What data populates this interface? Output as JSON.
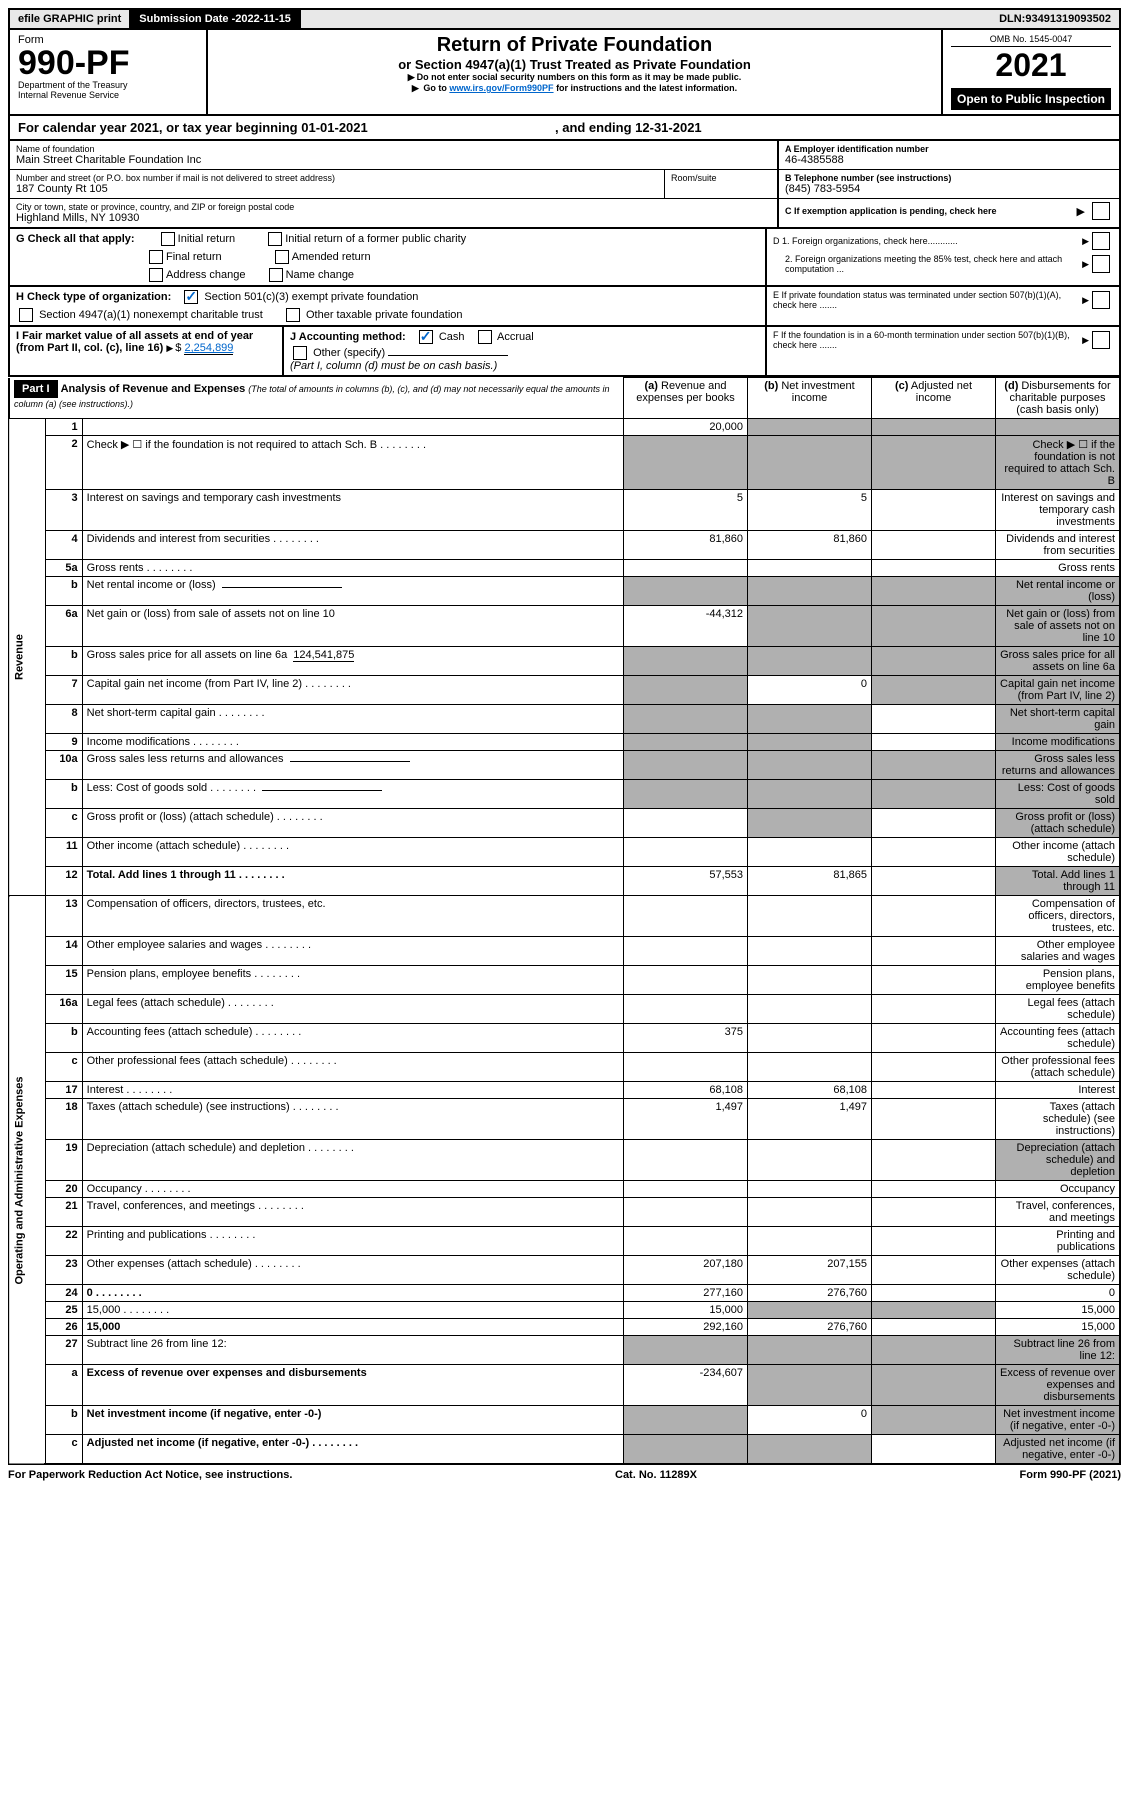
{
  "topbar": {
    "efile": "efile GRAPHIC print",
    "submission_label": "Submission Date - ",
    "submission_date": "2022-11-15",
    "dln_label": "DLN: ",
    "dln": "93491319093502"
  },
  "header": {
    "form_label": "Form",
    "form_no": "990-PF",
    "dept": "Department of the Treasury",
    "irs": "Internal Revenue Service",
    "title": "Return of Private Foundation",
    "subtitle": "or Section 4947(a)(1) Trust Treated as Private Foundation",
    "warn1": "Do not enter social security numbers on this form as it may be made public.",
    "warn2_a": "Go to ",
    "warn2_link": "www.irs.gov/Form990PF",
    "warn2_b": " for instructions and the latest information.",
    "omb": "OMB No. 1545-0047",
    "year": "2021",
    "open": "Open to Public Inspection"
  },
  "calendar": {
    "text_a": "For calendar year 2021, or tax year beginning ",
    "begin": "01-01-2021",
    "text_b": ", and ending ",
    "end": "12-31-2021"
  },
  "entity": {
    "name_label": "Name of foundation",
    "name": "Main Street Charitable Foundation Inc",
    "addr_label": "Number and street (or P.O. box number if mail is not delivered to street address)",
    "addr": "187 County Rt 105",
    "room_label": "Room/suite",
    "city_label": "City or town, state or province, country, and ZIP or foreign postal code",
    "city": "Highland Mills, NY  10930",
    "a_label": "A Employer identification number",
    "a_val": "46-4385588",
    "b_label": "B Telephone number (see instructions)",
    "b_val": "(845) 783-5954",
    "c_label": "C If exemption application is pending, check here",
    "d1": "D 1. Foreign organizations, check here............",
    "d2": "2. Foreign organizations meeting the 85% test, check here and attach computation ...",
    "e": "E  If private foundation status was terminated under section 507(b)(1)(A), check here .......",
    "f": "F  If the foundation is in a 60-month termination under section 507(b)(1)(B), check here .......",
    "g_label": "G Check all that apply:",
    "g_opts": [
      "Initial return",
      "Initial return of a former public charity",
      "Final return",
      "Amended return",
      "Address change",
      "Name change"
    ],
    "h_label": "H Check type of organization:",
    "h_opt1": "Section 501(c)(3) exempt private foundation",
    "h_opt2": "Section 4947(a)(1) nonexempt charitable trust",
    "h_opt3": "Other taxable private foundation",
    "i_label": "I Fair market value of all assets at end of year (from Part II, col. (c), line 16)",
    "i_val": "2,254,899",
    "j_label": "J Accounting method:",
    "j_cash": "Cash",
    "j_accrual": "Accrual",
    "j_other": "Other (specify)",
    "j_note": "(Part I, column (d) must be on cash basis.)"
  },
  "part1": {
    "label": "Part I",
    "title": "Analysis of Revenue and Expenses",
    "note": "(The total of amounts in columns (b), (c), and (d) may not necessarily equal the amounts in column (a) (see instructions).)",
    "col_a": "Revenue and expenses per books",
    "col_b": "Net investment income",
    "col_c": "Adjusted net income",
    "col_d": "Disbursements for charitable purposes (cash basis only)",
    "sections": {
      "rev": "Revenue",
      "exp": "Operating and Administrative Expenses"
    },
    "rows": [
      {
        "n": "1",
        "d": "",
        "a": "20,000",
        "b": "",
        "c": "",
        "shade_b": true,
        "shade_c": true,
        "shade_d": true
      },
      {
        "n": "2",
        "d": "Check ▶ ☐ if the foundation is not required to attach Sch. B",
        "dots": true,
        "a": "",
        "shade_a": true,
        "shade_b": true,
        "shade_c": true,
        "shade_d": true
      },
      {
        "n": "3",
        "d": "Interest on savings and temporary cash investments",
        "a": "5",
        "b": "5"
      },
      {
        "n": "4",
        "d": "Dividends and interest from securities",
        "dots": true,
        "a": "81,860",
        "b": "81,860"
      },
      {
        "n": "5a",
        "d": "Gross rents",
        "dots": true
      },
      {
        "n": "b",
        "d": "Net rental income or (loss)",
        "underline": true,
        "shade_a": true,
        "shade_b": true,
        "shade_c": true,
        "shade_d": true
      },
      {
        "n": "6a",
        "d": "Net gain or (loss) from sale of assets not on line 10",
        "a": "-44,312",
        "shade_b": true,
        "shade_c": true,
        "shade_d": true
      },
      {
        "n": "b",
        "d": "Gross sales price for all assets on line 6a",
        "inline_val": "124,541,875",
        "shade_a": true,
        "shade_b": true,
        "shade_c": true,
        "shade_d": true
      },
      {
        "n": "7",
        "d": "Capital gain net income (from Part IV, line 2)",
        "dots": true,
        "shade_a": true,
        "b": "0",
        "shade_c": true,
        "shade_d": true
      },
      {
        "n": "8",
        "d": "Net short-term capital gain",
        "dots": true,
        "shade_a": true,
        "shade_b": true,
        "shade_d": true
      },
      {
        "n": "9",
        "d": "Income modifications",
        "dots": true,
        "shade_a": true,
        "shade_b": true,
        "shade_d": true
      },
      {
        "n": "10a",
        "d": "Gross sales less returns and allowances",
        "underline": true,
        "shade_a": true,
        "shade_b": true,
        "shade_c": true,
        "shade_d": true
      },
      {
        "n": "b",
        "d": "Less: Cost of goods sold",
        "dots": true,
        "underline": true,
        "shade_a": true,
        "shade_b": true,
        "shade_c": true,
        "shade_d": true
      },
      {
        "n": "c",
        "d": "Gross profit or (loss) (attach schedule)",
        "dots": true,
        "shade_b": true,
        "shade_d": true
      },
      {
        "n": "11",
        "d": "Other income (attach schedule)",
        "dots": true
      },
      {
        "n": "12",
        "d": "Total. Add lines 1 through 11",
        "dots": true,
        "bold": true,
        "a": "57,553",
        "b": "81,865",
        "shade_d": true
      },
      {
        "n": "13",
        "d": "Compensation of officers, directors, trustees, etc.",
        "sec": "exp"
      },
      {
        "n": "14",
        "d": "Other employee salaries and wages",
        "dots": true
      },
      {
        "n": "15",
        "d": "Pension plans, employee benefits",
        "dots": true
      },
      {
        "n": "16a",
        "d": "Legal fees (attach schedule)",
        "dots": true
      },
      {
        "n": "b",
        "d": "Accounting fees (attach schedule)",
        "dots": true,
        "a": "375"
      },
      {
        "n": "c",
        "d": "Other professional fees (attach schedule)",
        "dots": true
      },
      {
        "n": "17",
        "d": "Interest",
        "dots": true,
        "a": "68,108",
        "b": "68,108"
      },
      {
        "n": "18",
        "d": "Taxes (attach schedule) (see instructions)",
        "dots": true,
        "a": "1,497",
        "b": "1,497"
      },
      {
        "n": "19",
        "d": "Depreciation (attach schedule) and depletion",
        "dots": true,
        "shade_d": true
      },
      {
        "n": "20",
        "d": "Occupancy",
        "dots": true
      },
      {
        "n": "21",
        "d": "Travel, conferences, and meetings",
        "dots": true
      },
      {
        "n": "22",
        "d": "Printing and publications",
        "dots": true
      },
      {
        "n": "23",
        "d": "Other expenses (attach schedule)",
        "dots": true,
        "a": "207,180",
        "b": "207,155"
      },
      {
        "n": "24",
        "d": "0",
        "dots": true,
        "bold": true,
        "a": "277,160",
        "b": "276,760"
      },
      {
        "n": "25",
        "d": "15,000",
        "dots": true,
        "a": "15,000",
        "shade_b": true,
        "shade_c": true
      },
      {
        "n": "26",
        "d": "15,000",
        "bold": true,
        "a": "292,160",
        "b": "276,760"
      },
      {
        "n": "27",
        "d": "Subtract line 26 from line 12:",
        "shade_a": true,
        "shade_b": true,
        "shade_c": true,
        "shade_d": true
      },
      {
        "n": "a",
        "d": "Excess of revenue over expenses and disbursements",
        "bold": true,
        "a": "-234,607",
        "shade_b": true,
        "shade_c": true,
        "shade_d": true
      },
      {
        "n": "b",
        "d": "Net investment income (if negative, enter -0-)",
        "bold": true,
        "shade_a": true,
        "b": "0",
        "shade_c": true,
        "shade_d": true
      },
      {
        "n": "c",
        "d": "Adjusted net income (if negative, enter -0-)",
        "dots": true,
        "bold": true,
        "shade_a": true,
        "shade_b": true,
        "shade_d": true
      }
    ]
  },
  "footer": {
    "left": "For Paperwork Reduction Act Notice, see instructions.",
    "mid": "Cat. No. 11289X",
    "right": "Form 990-PF (2021)"
  },
  "colors": {
    "link": "#0066cc",
    "shade": "#b0b0b0",
    "topbar_bg": "#e8e8e8"
  }
}
